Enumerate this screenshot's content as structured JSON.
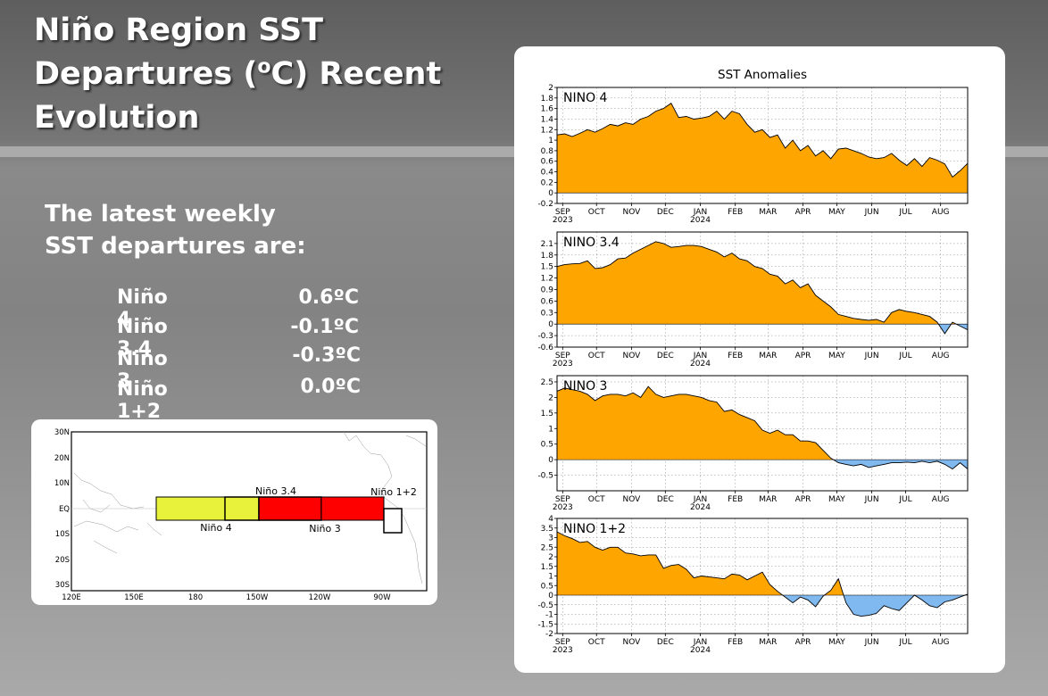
{
  "slide": {
    "title_lines": [
      "Niño Region SST",
      "Departures (",
      "o",
      "C) Recent",
      "Evolution"
    ],
    "intro_lines": [
      "The latest weekly",
      "SST departures are:"
    ],
    "latest": [
      {
        "region": "Niño 4",
        "value": "0.6ºC"
      },
      {
        "region": "Niño 3.4",
        "value": "-0.1ºC"
      },
      {
        "region": "Niño 3",
        "value": "-0.3ºC"
      },
      {
        "region": "Niño 1+2",
        "value": "0.0ºC"
      }
    ]
  },
  "map": {
    "lat_labels": [
      "30N",
      "20N",
      "10N",
      "EQ",
      "10S",
      "20S",
      "30S"
    ],
    "lon_labels": [
      "120E",
      "150E",
      "180",
      "150W",
      "120W",
      "90W"
    ],
    "region_labels": {
      "nino34": "Niño 3.4",
      "nino4": "Niño 4",
      "nino3": "Niño 3",
      "nino12": "Niño 1+2"
    },
    "colors": {
      "nino4": "#e8f23a",
      "nino3": "#ff0000",
      "outline": "#000000"
    }
  },
  "chart_data": {
    "type": "area",
    "title": "SST Anomalies",
    "x_labels": [
      "SEP",
      "OCT",
      "NOV",
      "DEC",
      "JAN",
      "FEB",
      "MAR",
      "APR",
      "MAY",
      "JUN",
      "JUL",
      "AUG"
    ],
    "year_labels": {
      "SEP": "2023",
      "JAN": "2024"
    },
    "x_range": [
      "2023-08-27",
      "2024-08-25"
    ],
    "colors": {
      "positive": "#ffa500",
      "negative": "#80b8f0",
      "line": "#000000",
      "grid": "#888888"
    },
    "grid": true,
    "panels": [
      {
        "name": "NINO 4",
        "ylim": [
          -0.2,
          2
        ],
        "yticks": [
          "-0.2",
          "0",
          "0.2",
          "0.4",
          "0.6",
          "0.8",
          "1",
          "1.2",
          "1.4",
          "1.6",
          "1.8",
          "2"
        ],
        "values": [
          1.1,
          1.12,
          1.07,
          1.13,
          1.2,
          1.15,
          1.22,
          1.3,
          1.27,
          1.33,
          1.3,
          1.4,
          1.45,
          1.55,
          1.6,
          1.7,
          1.43,
          1.45,
          1.4,
          1.42,
          1.45,
          1.55,
          1.4,
          1.55,
          1.5,
          1.3,
          1.15,
          1.2,
          1.05,
          1.1,
          0.85,
          1.0,
          0.8,
          0.9,
          0.7,
          0.8,
          0.65,
          0.83,
          0.85,
          0.8,
          0.75,
          0.68,
          0.65,
          0.67,
          0.75,
          0.62,
          0.52,
          0.65,
          0.5,
          0.67,
          0.62,
          0.55,
          0.3,
          0.42,
          0.56
        ]
      },
      {
        "name": "NINO 3.4",
        "ylim": [
          -0.6,
          2.4
        ],
        "yticks": [
          "-0.6",
          "-0.3",
          "0",
          "0.3",
          "0.6",
          "0.9",
          "1.2",
          "1.5",
          "1.8",
          "2.1"
        ],
        "values": [
          1.5,
          1.55,
          1.57,
          1.58,
          1.65,
          1.45,
          1.47,
          1.55,
          1.7,
          1.72,
          1.85,
          1.95,
          2.05,
          2.15,
          2.1,
          2.0,
          2.02,
          2.05,
          2.05,
          2.02,
          1.95,
          1.88,
          1.75,
          1.85,
          1.7,
          1.65,
          1.5,
          1.45,
          1.3,
          1.25,
          1.05,
          1.15,
          0.95,
          1.05,
          0.75,
          0.6,
          0.45,
          0.25,
          0.2,
          0.15,
          0.12,
          0.1,
          0.12,
          0.05,
          0.3,
          0.38,
          0.33,
          0.3,
          0.25,
          0.2,
          0.05,
          -0.25,
          0.05,
          -0.05,
          -0.15
        ]
      },
      {
        "name": "NINO 3",
        "ylim": [
          -1,
          2.7
        ],
        "yticks": [
          "-0.5",
          "0",
          "0.5",
          "1",
          "1.5",
          "2",
          "2.5"
        ],
        "values": [
          2.2,
          2.3,
          2.25,
          2.2,
          2.1,
          1.9,
          2.05,
          2.1,
          2.1,
          2.05,
          2.15,
          2.0,
          2.35,
          2.1,
          2.0,
          2.05,
          2.1,
          2.1,
          2.05,
          2.0,
          1.9,
          1.85,
          1.55,
          1.6,
          1.45,
          1.35,
          1.25,
          0.95,
          0.85,
          0.95,
          0.8,
          0.8,
          0.6,
          0.6,
          0.55,
          0.3,
          0.05,
          -0.1,
          -0.15,
          -0.2,
          -0.15,
          -0.25,
          -0.2,
          -0.15,
          -0.1,
          -0.1,
          -0.08,
          -0.1,
          -0.05,
          -0.1,
          -0.05,
          -0.15,
          -0.3,
          -0.1,
          -0.3
        ]
      },
      {
        "name": "NINO 1+2",
        "ylim": [
          -2,
          4
        ],
        "yticks": [
          "-2",
          "-1.5",
          "-1",
          "-0.5",
          "0",
          "0.5",
          "1",
          "1.5",
          "2",
          "2.5",
          "3",
          "3.5",
          "4"
        ],
        "values": [
          3.3,
          3.1,
          2.95,
          2.75,
          2.8,
          2.5,
          2.35,
          2.5,
          2.5,
          2.2,
          2.15,
          2.05,
          2.1,
          2.1,
          1.4,
          1.55,
          1.6,
          1.35,
          0.9,
          1.0,
          0.95,
          0.9,
          0.85,
          1.1,
          1.05,
          0.8,
          1.0,
          1.2,
          0.55,
          0.2,
          -0.1,
          -0.4,
          -0.1,
          -0.25,
          -0.6,
          -0.05,
          0.25,
          0.85,
          -0.4,
          -1.0,
          -1.1,
          -1.05,
          -0.95,
          -0.55,
          -0.7,
          -0.8,
          -0.4,
          0.0,
          -0.25,
          -0.55,
          -0.65,
          -0.35,
          -0.25,
          -0.1,
          0.05
        ]
      }
    ]
  }
}
